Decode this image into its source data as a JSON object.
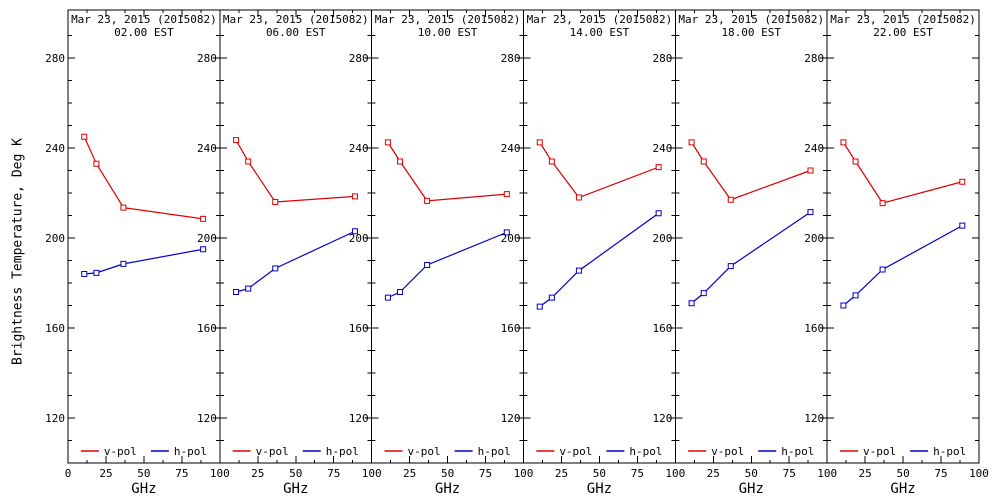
{
  "chart_data": {
    "type": "line",
    "title_line1": "Mar 23, 2015 (2015082)",
    "xlabel": "GHz",
    "ylabel": "Brightness Temperature, Deg K",
    "x_label_hidden_first": "0",
    "xlim": [
      0,
      100
    ],
    "ylim": [
      100,
      300
    ],
    "x_ticks": [
      0,
      25,
      50,
      75,
      100
    ],
    "x_minor_step": 12.5,
    "y_ticks": [
      120,
      160,
      200,
      240,
      280
    ],
    "y_minor_step": 10,
    "frequencies_ghz": [
      10.7,
      18.7,
      36.5,
      89
    ],
    "marker": "open-square",
    "colors": {
      "v_pol": "#dd0000",
      "h_pol": "#0000cc",
      "axis": "#000000",
      "background": "#ffffff"
    },
    "legend": [
      {
        "label": "v-pol",
        "series": "v_pol",
        "color": "#dd0000"
      },
      {
        "label": "h-pol",
        "series": "h_pol",
        "color": "#0000cc"
      }
    ],
    "panels": [
      {
        "time_label": "02.00 EST",
        "v_pol": [
          245.0,
          233.0,
          213.5,
          208.5
        ],
        "h_pol": [
          184.0,
          184.5,
          188.5,
          195.0
        ]
      },
      {
        "time_label": "06.00 EST",
        "v_pol": [
          243.5,
          234.0,
          216.0,
          218.5
        ],
        "h_pol": [
          176.0,
          177.5,
          186.5,
          203.0
        ]
      },
      {
        "time_label": "10.00 EST",
        "v_pol": [
          242.5,
          234.0,
          216.5,
          219.5
        ],
        "h_pol": [
          173.5,
          176.0,
          188.0,
          202.5
        ]
      },
      {
        "time_label": "14.00 EST",
        "v_pol": [
          242.5,
          234.0,
          218.0,
          231.5
        ],
        "h_pol": [
          169.5,
          173.5,
          185.5,
          211.0
        ]
      },
      {
        "time_label": "18.00 EST",
        "v_pol": [
          242.5,
          234.0,
          217.0,
          230.0
        ],
        "h_pol": [
          171.0,
          175.5,
          187.5,
          211.5
        ]
      },
      {
        "time_label": "22.00 EST",
        "v_pol": [
          242.5,
          234.0,
          215.5,
          225.0
        ],
        "h_pol": [
          170.0,
          174.5,
          186.0,
          205.5
        ]
      }
    ]
  }
}
